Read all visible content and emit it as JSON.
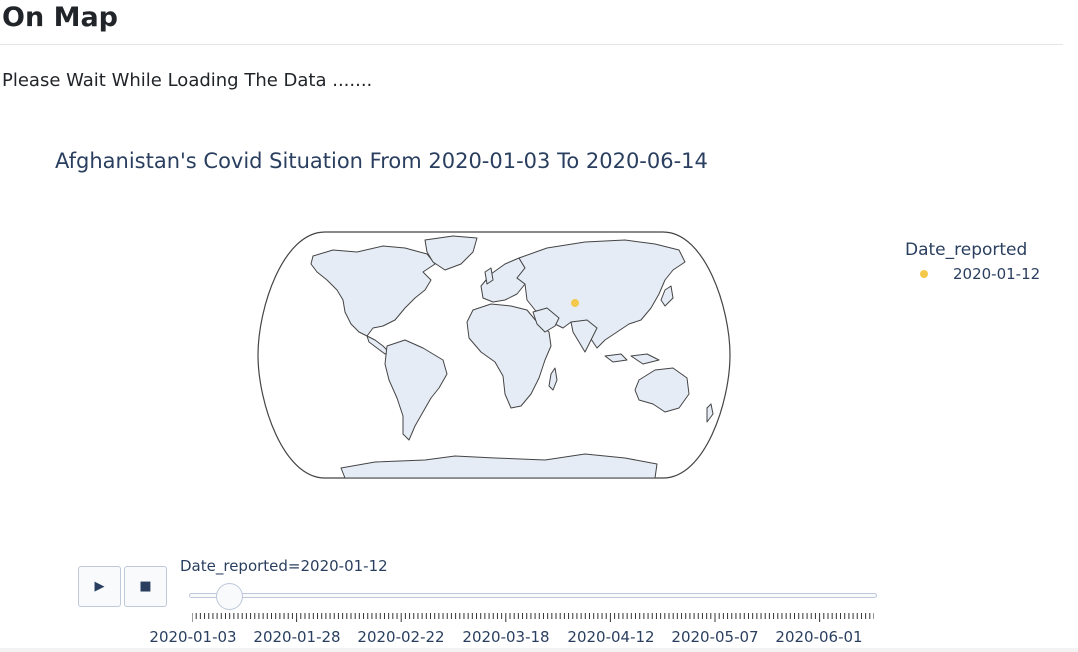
{
  "page": {
    "heading": "On Map",
    "loading_text": "Please Wait While Loading The Data ......."
  },
  "plot": {
    "title": "Afghanistan's Covid Situation From 2020-01-03 To 2020-06-14",
    "legend": {
      "title": "Date_reported",
      "items": [
        {
          "label": "2020-01-12",
          "color": "#f4c94b"
        }
      ]
    },
    "map": {
      "projection": "natural earth",
      "land_color": "#e5ecf6",
      "coast_color": "#444444",
      "marker": {
        "location": "Afghanistan",
        "color": "#f4c94b"
      }
    },
    "controls": {
      "play_icon": "play-icon",
      "stop_icon": "stop-icon"
    },
    "slider": {
      "current_label": "Date_reported=2020-01-12",
      "current_value": "2020-01-12",
      "start": "2020-01-03",
      "end": "2020-06-14",
      "tick_labels": [
        "2020-01-03",
        "2020-01-28",
        "2020-02-22",
        "2020-03-18",
        "2020-04-12",
        "2020-05-07",
        "2020-06-01"
      ]
    }
  }
}
